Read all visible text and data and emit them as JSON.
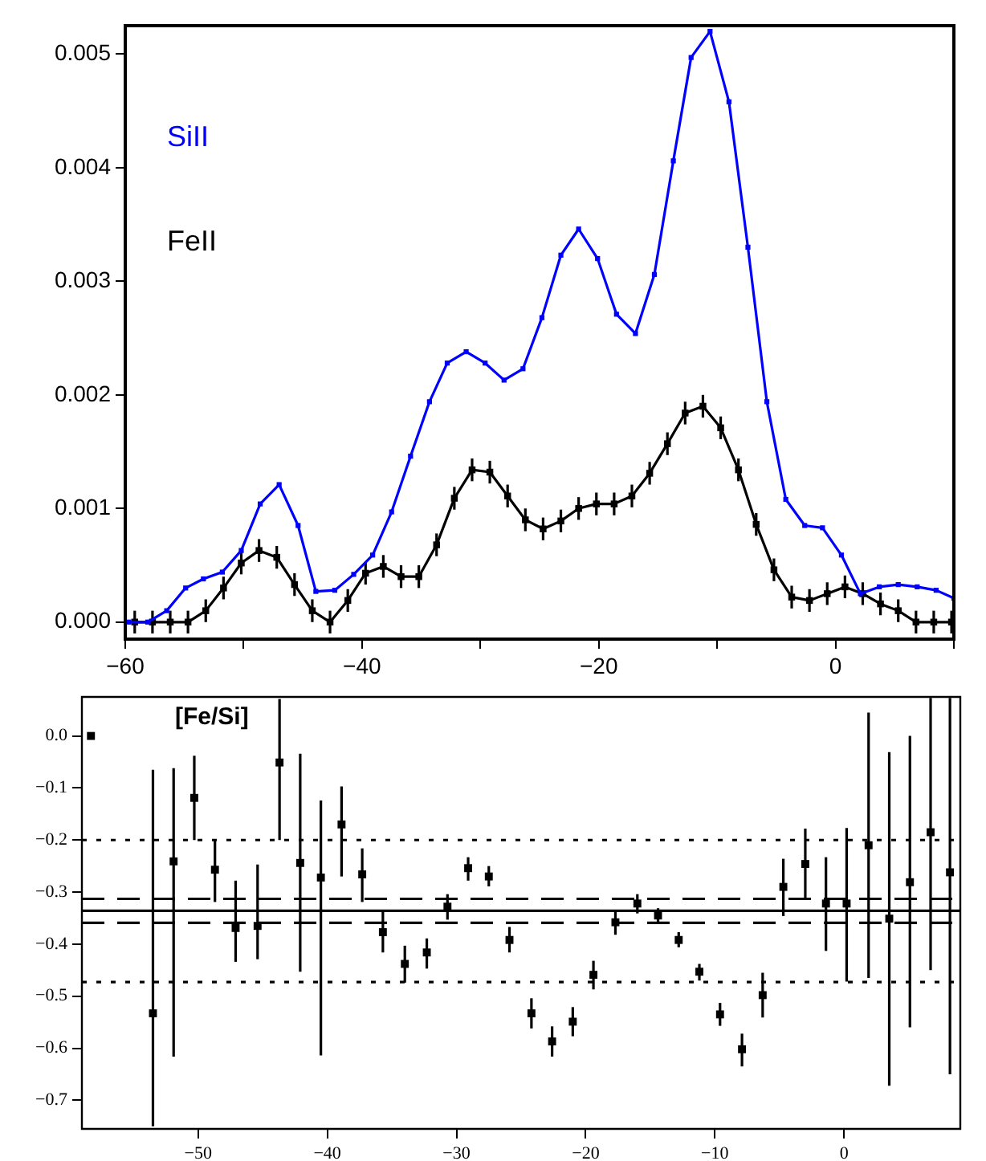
{
  "chart_data": [
    {
      "type": "line",
      "legend": false,
      "grid": false,
      "marker": "square",
      "line_style": "solid",
      "xlim": [
        -60,
        10
      ],
      "xticks": [
        {
          "value": -60,
          "label": "−60"
        },
        {
          "value": -50,
          "label": null
        },
        {
          "value": -40,
          "label": "−40"
        },
        {
          "value": -30,
          "label": null
        },
        {
          "value": -20,
          "label": "−20"
        },
        {
          "value": -10,
          "label": null
        },
        {
          "value": 0,
          "label": "0"
        },
        {
          "value": 10,
          "label": null
        }
      ],
      "ylim": [
        -0.00015,
        0.00525
      ],
      "yticks": [
        {
          "value": 0,
          "label": "0.000"
        },
        {
          "value": 0.001,
          "label": "0.001"
        },
        {
          "value": 0.002,
          "label": "0.002"
        },
        {
          "value": 0.003,
          "label": "0.003"
        },
        {
          "value": 0.004,
          "label": "0.004"
        },
        {
          "value": 0.005,
          "label": "0.005"
        }
      ],
      "series": [
        {
          "name": "SiII",
          "color": "#0000ff",
          "x": [
            -59.7,
            -58.1,
            -56.5,
            -54.9,
            -53.4,
            -51.8,
            -50.2,
            -48.6,
            -47.0,
            -45.4,
            -43.9,
            -42.3,
            -40.7,
            -39.1,
            -37.5,
            -35.9,
            -34.3,
            -32.8,
            -31.2,
            -29.6,
            -28.0,
            -26.4,
            -24.8,
            -23.2,
            -21.7,
            -20.1,
            -18.5,
            -16.9,
            -15.3,
            -13.7,
            -12.2,
            -10.6,
            -9.0,
            -7.4,
            -5.8,
            -4.2,
            -2.6,
            -1.1,
            0.5,
            2.1,
            3.7,
            5.3,
            6.9,
            8.5,
            10.0
          ],
          "values": [
            0,
            0,
            0.0001,
            0.0003,
            0.00038,
            0.00044,
            0.00063,
            0.00104,
            0.00121,
            0.00085,
            0.00027,
            0.00028,
            0.00042,
            0.00059,
            0.00097,
            0.00146,
            0.00194,
            0.00228,
            0.00238,
            0.00228,
            0.00213,
            0.00223,
            0.00268,
            0.00323,
            0.00346,
            0.0032,
            0.00271,
            0.00254,
            0.00306,
            0.00406,
            0.00497,
            0.0052,
            0.00458,
            0.0033,
            0.00194,
            0.00108,
            0.00085,
            0.00083,
            0.00059,
            0.00025,
            0.00031,
            0.00033,
            0.00031,
            0.00028,
            0.00021
          ]
        },
        {
          "name": "FeII",
          "color": "#000000",
          "x": [
            -59.2,
            -57.7,
            -56.2,
            -54.7,
            -53.2,
            -51.7,
            -50.2,
            -48.7,
            -47.2,
            -45.7,
            -44.2,
            -42.7,
            -41.2,
            -39.7,
            -38.2,
            -36.7,
            -35.2,
            -33.7,
            -32.2,
            -30.7,
            -29.2,
            -27.7,
            -26.2,
            -24.7,
            -23.2,
            -21.7,
            -20.2,
            -18.7,
            -17.2,
            -15.7,
            -14.2,
            -12.7,
            -11.2,
            -9.7,
            -8.2,
            -6.7,
            -5.2,
            -3.7,
            -2.2,
            -0.7,
            0.8,
            2.3,
            3.8,
            5.3,
            6.8,
            8.3,
            9.8
          ],
          "values": [
            0,
            0,
            0,
            0,
            0.0001,
            0.0003,
            0.00052,
            0.00063,
            0.00057,
            0.00033,
            0.0001,
            0,
            0.00019,
            0.00043,
            0.00049,
            0.0004,
            0.0004,
            0.00068,
            0.00109,
            0.00134,
            0.00132,
            0.00111,
            0.0009,
            0.00082,
            0.00089,
            0.001,
            0.00104,
            0.00104,
            0.00111,
            0.00131,
            0.00157,
            0.00184,
            0.0019,
            0.00171,
            0.00134,
            0.00086,
            0.00046,
            0.00022,
            0.00019,
            0.00025,
            0.00031,
            0.00025,
            0.00016,
            0.0001,
            0,
            0,
            0
          ],
          "errors": [
            0.0001,
            0.0001,
            0.0001,
            0.0001,
            0.0001,
            0.0001,
            0.0001,
            0.0001,
            0.0001,
            0.0001,
            0.0001,
            0.0001,
            0.0001,
            0.0001,
            0.0001,
            0.0001,
            0.0001,
            0.0001,
            0.0001,
            0.0001,
            0.0001,
            0.0001,
            0.0001,
            0.0001,
            0.0001,
            0.0001,
            0.0001,
            0.0001,
            0.0001,
            0.0001,
            0.0001,
            0.0001,
            0.0001,
            0.0001,
            0.0001,
            0.0001,
            0.0001,
            0.0001,
            0.0001,
            0.0001,
            0.0001,
            0.0001,
            0.0001,
            0.0001,
            0.0001,
            0.0001,
            0.0001
          ]
        }
      ]
    },
    {
      "type": "scatter",
      "legend": false,
      "grid": false,
      "marker": "square",
      "color": "#000000",
      "annotations": [
        "[Fe/Si]"
      ],
      "xlim": [
        -59,
        9
      ],
      "xticks": [
        {
          "value": -50,
          "label": "−50"
        },
        {
          "value": -40,
          "label": "−40"
        },
        {
          "value": -30,
          "label": "−30"
        },
        {
          "value": -20,
          "label": "−20"
        },
        {
          "value": -10,
          "label": "−10"
        },
        {
          "value": 0,
          "label": "0"
        }
      ],
      "ylim": [
        -0.755,
        0.075
      ],
      "yticks": [
        {
          "value": 0,
          "label": "0.0"
        },
        {
          "value": -0.1,
          "label": "−0.1"
        },
        {
          "value": -0.2,
          "label": "−0.2"
        },
        {
          "value": -0.3,
          "label": "−0.3"
        },
        {
          "value": -0.4,
          "label": "−0.4"
        },
        {
          "value": -0.5,
          "label": "−0.5"
        },
        {
          "value": -0.6,
          "label": "−0.6"
        },
        {
          "value": -0.7,
          "label": "−0.7"
        }
      ],
      "x": [
        -58.3,
        -53.5,
        -51.9,
        -50.3,
        -48.7,
        -47.1,
        -45.4,
        -43.7,
        -42.1,
        -40.5,
        -38.9,
        -37.3,
        -35.7,
        -34.0,
        -32.3,
        -30.7,
        -29.1,
        -27.5,
        -25.9,
        -24.2,
        -22.6,
        -21.0,
        -19.4,
        -17.7,
        -16.0,
        -14.4,
        -12.8,
        -11.2,
        -9.6,
        -7.9,
        -6.3,
        -4.7,
        -3.0,
        -1.4,
        0.2,
        1.9,
        3.5,
        5.1,
        6.7,
        8.2
      ],
      "values": [
        0.0,
        -0.533,
        -0.241,
        -0.119,
        -0.257,
        -0.369,
        -0.365,
        -0.051,
        -0.244,
        -0.272,
        -0.17,
        -0.266,
        -0.377,
        -0.438,
        -0.416,
        -0.328,
        -0.254,
        -0.27,
        -0.392,
        -0.533,
        -0.587,
        -0.549,
        -0.459,
        -0.358,
        -0.322,
        -0.345,
        -0.392,
        -0.453,
        -0.535,
        -0.602,
        -0.498,
        -0.29,
        -0.246,
        -0.322,
        -0.322,
        -0.21,
        -0.351,
        -0.281,
        -0.185,
        -0.262
      ],
      "errors": [
        null,
        [
          -0.75,
          -0.065
        ],
        [
          -0.616,
          -0.062
        ],
        [
          -0.2,
          -0.038
        ],
        [
          -0.319,
          -0.2
        ],
        [
          -0.434,
          -0.278
        ],
        [
          -0.429,
          -0.247
        ],
        [
          -0.2,
          0.071
        ],
        [
          -0.453,
          -0.034
        ],
        [
          -0.614,
          -0.124
        ],
        [
          -0.27,
          -0.097
        ],
        [
          -0.319,
          -0.216
        ],
        [
          -0.416,
          -0.336
        ],
        [
          -0.474,
          -0.403
        ],
        [
          -0.447,
          -0.389
        ],
        [
          -0.353,
          -0.304
        ],
        [
          -0.278,
          -0.233
        ],
        [
          -0.289,
          -0.25
        ],
        [
          -0.416,
          -0.367
        ],
        [
          -0.562,
          -0.504
        ],
        [
          -0.616,
          -0.558
        ],
        [
          -0.577,
          -0.521
        ],
        [
          -0.487,
          -0.432
        ],
        [
          -0.382,
          -0.336
        ],
        [
          -0.341,
          -0.304
        ],
        [
          -0.359,
          -0.331
        ],
        [
          -0.406,
          -0.377
        ],
        [
          -0.47,
          -0.438
        ],
        [
          -0.557,
          -0.513
        ],
        [
          -0.635,
          -0.572
        ],
        [
          -0.541,
          -0.455
        ],
        [
          -0.346,
          -0.236
        ],
        [
          -0.314,
          -0.178
        ],
        [
          -0.413,
          -0.233
        ],
        [
          -0.472,
          -0.177
        ],
        [
          -0.465,
          0.045
        ],
        [
          -0.672,
          -0.031
        ],
        [
          -0.56,
          0.0
        ],
        [
          -0.45,
          0.073
        ],
        [
          -0.65,
          0.073
        ]
      ],
      "ref_lines": [
        {
          "axis": "y",
          "value": -0.336,
          "line_style": "solid"
        },
        {
          "axis": "y",
          "value": -0.313,
          "line_style": "dashed"
        },
        {
          "axis": "y",
          "value": -0.359,
          "line_style": "dashed"
        },
        {
          "axis": "y",
          "value": -0.2,
          "line_style": "dotted"
        },
        {
          "axis": "y",
          "value": -0.473,
          "line_style": "dotted"
        }
      ]
    }
  ]
}
